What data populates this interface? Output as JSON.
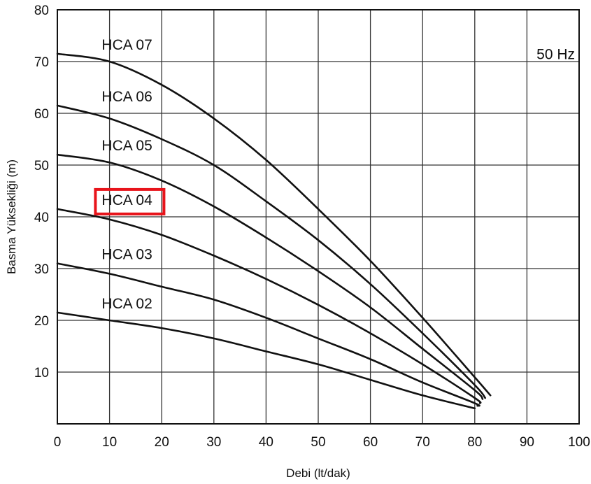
{
  "chart_data": {
    "type": "line",
    "xlabel": "Debi (lt/dak)",
    "ylabel": "Basma Yüksekliği (m)",
    "annotation": "50 Hz",
    "xlim": [
      0,
      100
    ],
    "ylim": [
      0,
      80
    ],
    "grid": true,
    "x_ticks": [
      "0",
      "10",
      "20",
      "30",
      "40",
      "50",
      "60",
      "70",
      "80",
      "90",
      "100"
    ],
    "y_ticks": [
      "10",
      "20",
      "30",
      "40",
      "50",
      "60",
      "70",
      "80"
    ],
    "highlighted_series": "HCA 04",
    "highlight_color": "#e8141b",
    "series": [
      {
        "name": "HCA 07",
        "x": [
          0,
          10,
          20,
          30,
          40,
          50,
          60,
          70,
          80,
          83
        ],
        "y": [
          71.5,
          70,
          65.5,
          59,
          51,
          41.5,
          31.5,
          20.5,
          9,
          5.5
        ]
      },
      {
        "name": "HCA 06",
        "x": [
          0,
          10,
          20,
          30,
          40,
          50,
          60,
          70,
          80,
          82
        ],
        "y": [
          61.5,
          59,
          55,
          50,
          43,
          35.5,
          27,
          17.5,
          7.5,
          5
        ]
      },
      {
        "name": "HCA 05",
        "x": [
          0,
          10,
          20,
          30,
          40,
          50,
          60,
          70,
          80,
          81.5
        ],
        "y": [
          52,
          50.5,
          47,
          42,
          36,
          29.5,
          22.5,
          14.5,
          6.5,
          4.8
        ]
      },
      {
        "name": "HCA 04",
        "x": [
          0,
          10,
          20,
          30,
          40,
          50,
          60,
          70,
          80,
          81
        ],
        "y": [
          41.5,
          39.5,
          36.5,
          32.5,
          28,
          23,
          17.5,
          11.5,
          5,
          4
        ]
      },
      {
        "name": "HCA 03",
        "x": [
          0,
          10,
          20,
          30,
          40,
          50,
          60,
          70,
          80,
          80.5
        ],
        "y": [
          31,
          29,
          26.5,
          24,
          20.5,
          16.5,
          12.5,
          8,
          4,
          3.5
        ]
      },
      {
        "name": "HCA 02",
        "x": [
          0,
          10,
          20,
          30,
          40,
          50,
          60,
          70,
          80
        ],
        "y": [
          21.5,
          20,
          18.5,
          16.5,
          14,
          11.5,
          8.5,
          5.5,
          3
        ]
      }
    ]
  }
}
